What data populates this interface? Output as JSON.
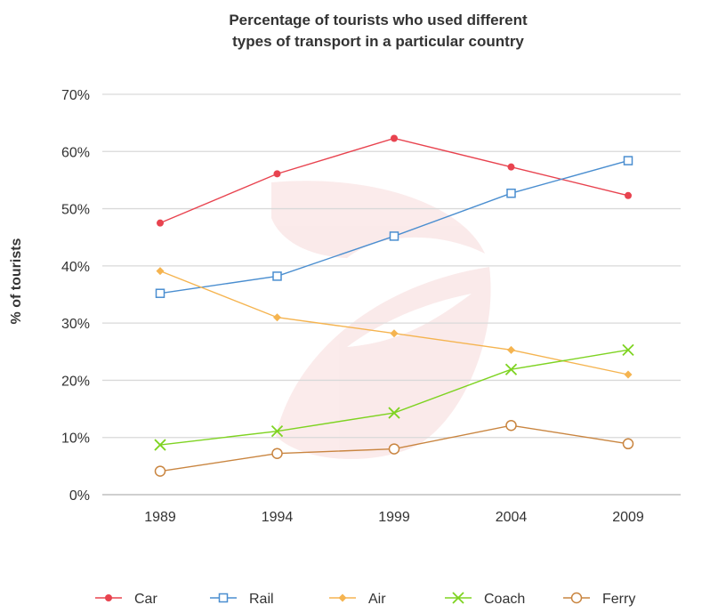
{
  "chart_data": {
    "type": "line",
    "title": [
      "Percentage of tourists who used different",
      "types of transport in a particular country"
    ],
    "xlabel": "",
    "ylabel": "% of tourists",
    "categories": [
      "1989",
      "1994",
      "1999",
      "2004",
      "2009"
    ],
    "ylim": [
      0,
      70
    ],
    "yticks": [
      0,
      10,
      20,
      30,
      40,
      50,
      60,
      70
    ],
    "ytick_labels": [
      "0%",
      "10%",
      "20%",
      "30%",
      "40%",
      "50%",
      "60%",
      "70%"
    ],
    "grid": "horizontal",
    "legend_position": "bottom",
    "series": [
      {
        "name": "Car",
        "values": [
          47.5,
          56.1,
          62.3,
          57.3,
          52.3
        ],
        "color": "#e8434f",
        "marker": "filled-circle"
      },
      {
        "name": "Rail",
        "values": [
          35.2,
          38.2,
          45.2,
          52.7,
          58.4
        ],
        "color": "#4a8ed0",
        "marker": "hollow-square"
      },
      {
        "name": "Air",
        "values": [
          39.1,
          31.0,
          28.2,
          25.3,
          21.0
        ],
        "color": "#f5b450",
        "marker": "filled-diamond"
      },
      {
        "name": "Coach",
        "values": [
          8.7,
          11.1,
          14.3,
          21.9,
          25.3
        ],
        "color": "#7ed321",
        "marker": "cross"
      },
      {
        "name": "Ferry",
        "values": [
          4.1,
          7.2,
          8.0,
          12.1,
          8.9
        ],
        "color": "#c98540",
        "marker": "hollow-circle"
      }
    ]
  }
}
